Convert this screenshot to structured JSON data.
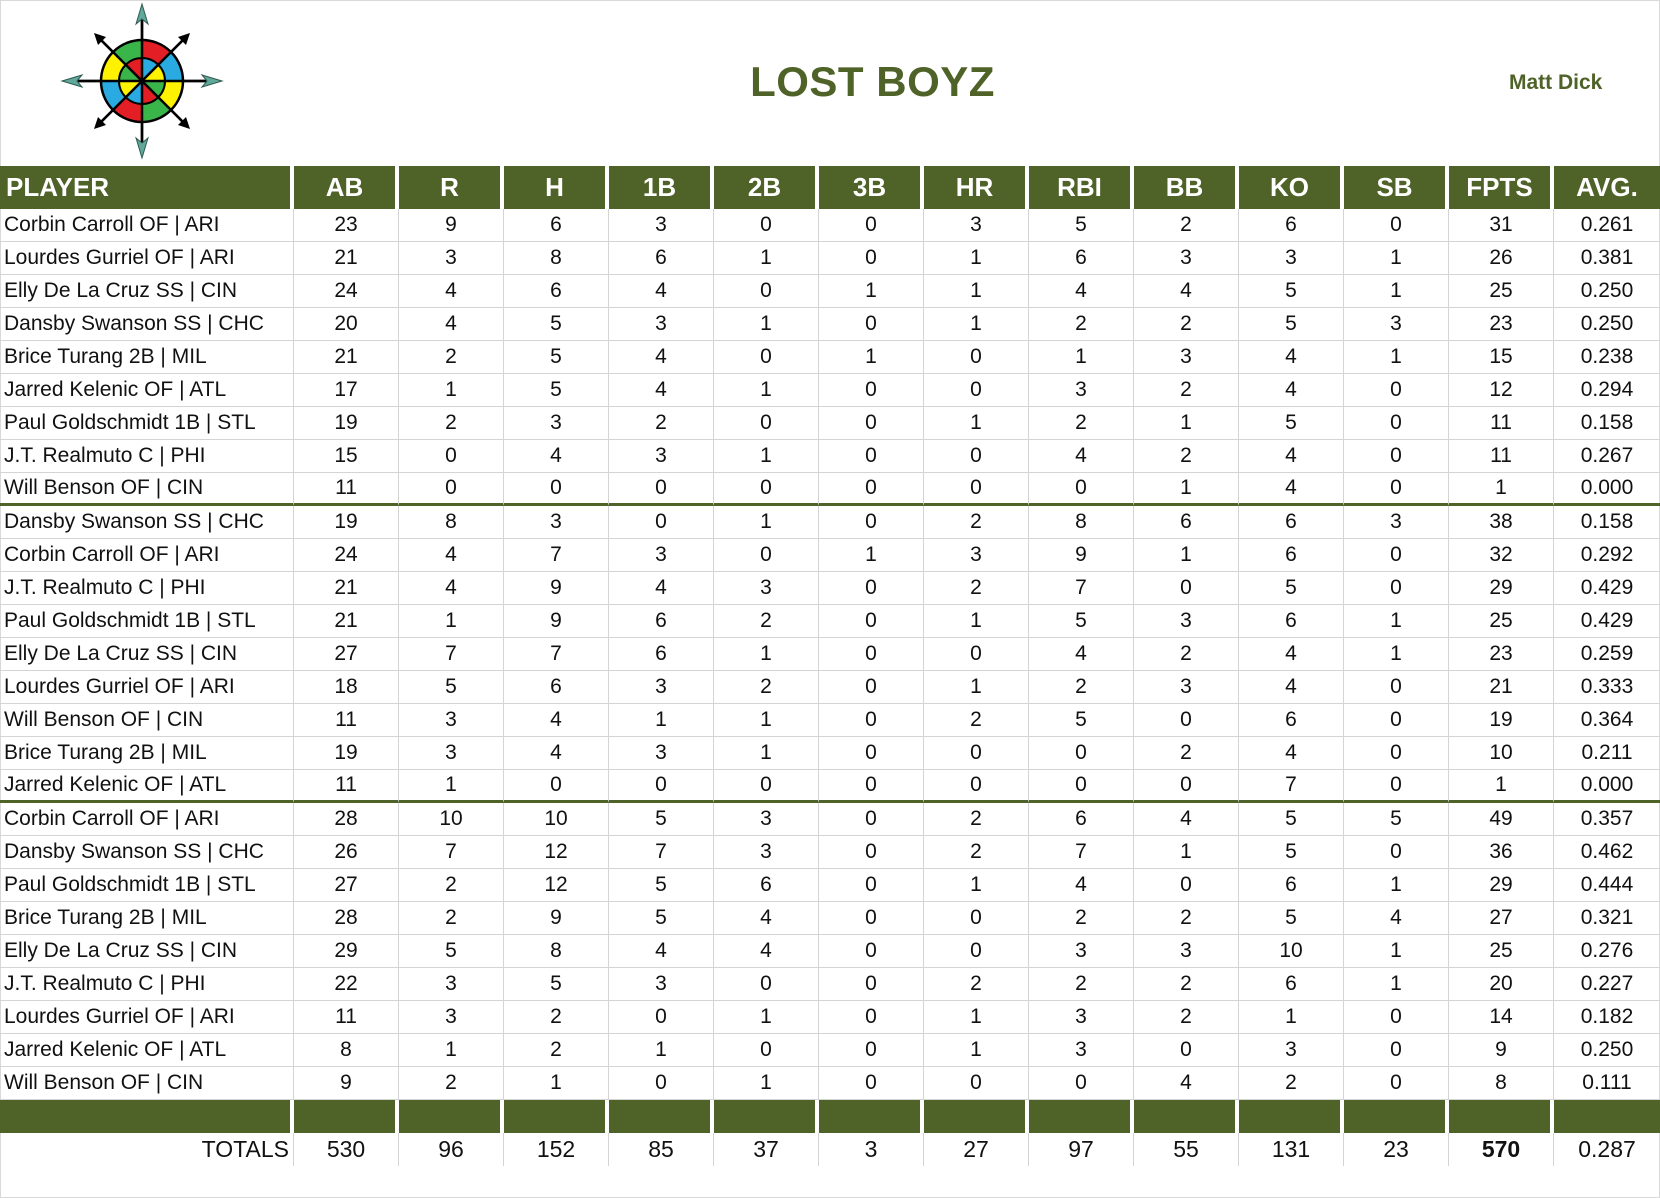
{
  "header": {
    "logo_icon": "compass-rose-icon",
    "team_name": "LOST BOYZ",
    "owner": "Matt Dick"
  },
  "colors": {
    "accent_green": "#4f6228",
    "header_text": "#ffffff",
    "gridline": "#d4d4d4"
  },
  "table": {
    "columns": [
      "PLAYER",
      "AB",
      "R",
      "H",
      "1B",
      "2B",
      "3B",
      "HR",
      "RBI",
      "BB",
      "KO",
      "SB",
      "FPTS",
      "AVG."
    ],
    "blocks": [
      {
        "rows": [
          [
            "Corbin Carroll OF | ARI",
            "23",
            "9",
            "6",
            "3",
            "0",
            "0",
            "3",
            "5",
            "2",
            "6",
            "0",
            "31",
            "0.261"
          ],
          [
            "Lourdes Gurriel OF | ARI",
            "21",
            "3",
            "8",
            "6",
            "1",
            "0",
            "1",
            "6",
            "3",
            "3",
            "1",
            "26",
            "0.381"
          ],
          [
            "Elly De La Cruz SS | CIN",
            "24",
            "4",
            "6",
            "4",
            "0",
            "1",
            "1",
            "4",
            "4",
            "5",
            "1",
            "25",
            "0.250"
          ],
          [
            "Dansby Swanson SS | CHC",
            "20",
            "4",
            "5",
            "3",
            "1",
            "0",
            "1",
            "2",
            "2",
            "5",
            "3",
            "23",
            "0.250"
          ],
          [
            "Brice Turang 2B | MIL",
            "21",
            "2",
            "5",
            "4",
            "0",
            "1",
            "0",
            "1",
            "3",
            "4",
            "1",
            "15",
            "0.238"
          ],
          [
            "Jarred Kelenic OF | ATL",
            "17",
            "1",
            "5",
            "4",
            "1",
            "0",
            "0",
            "3",
            "2",
            "4",
            "0",
            "12",
            "0.294"
          ],
          [
            "Paul Goldschmidt 1B | STL",
            "19",
            "2",
            "3",
            "2",
            "0",
            "0",
            "1",
            "2",
            "1",
            "5",
            "0",
            "11",
            "0.158"
          ],
          [
            "J.T. Realmuto C | PHI",
            "15",
            "0",
            "4",
            "3",
            "1",
            "0",
            "0",
            "4",
            "2",
            "4",
            "0",
            "11",
            "0.267"
          ],
          [
            "Will Benson OF | CIN",
            "11",
            "0",
            "0",
            "0",
            "0",
            "0",
            "0",
            "0",
            "1",
            "4",
            "0",
            "1",
            "0.000"
          ]
        ]
      },
      {
        "rows": [
          [
            "Dansby Swanson SS | CHC",
            "19",
            "8",
            "3",
            "0",
            "1",
            "0",
            "2",
            "8",
            "6",
            "6",
            "3",
            "38",
            "0.158"
          ],
          [
            "Corbin Carroll OF | ARI",
            "24",
            "4",
            "7",
            "3",
            "0",
            "1",
            "3",
            "9",
            "1",
            "6",
            "0",
            "32",
            "0.292"
          ],
          [
            "J.T. Realmuto C | PHI",
            "21",
            "4",
            "9",
            "4",
            "3",
            "0",
            "2",
            "7",
            "0",
            "5",
            "0",
            "29",
            "0.429"
          ],
          [
            "Paul Goldschmidt 1B | STL",
            "21",
            "1",
            "9",
            "6",
            "2",
            "0",
            "1",
            "5",
            "3",
            "6",
            "1",
            "25",
            "0.429"
          ],
          [
            "Elly De La Cruz SS | CIN",
            "27",
            "7",
            "7",
            "6",
            "1",
            "0",
            "0",
            "4",
            "2",
            "4",
            "1",
            "23",
            "0.259"
          ],
          [
            "Lourdes Gurriel OF | ARI",
            "18",
            "5",
            "6",
            "3",
            "2",
            "0",
            "1",
            "2",
            "3",
            "4",
            "0",
            "21",
            "0.333"
          ],
          [
            "Will Benson OF | CIN",
            "11",
            "3",
            "4",
            "1",
            "1",
            "0",
            "2",
            "5",
            "0",
            "6",
            "0",
            "19",
            "0.364"
          ],
          [
            "Brice Turang 2B | MIL",
            "19",
            "3",
            "4",
            "3",
            "1",
            "0",
            "0",
            "0",
            "2",
            "4",
            "0",
            "10",
            "0.211"
          ],
          [
            "Jarred Kelenic OF | ATL",
            "11",
            "1",
            "0",
            "0",
            "0",
            "0",
            "0",
            "0",
            "0",
            "7",
            "0",
            "1",
            "0.000"
          ]
        ]
      },
      {
        "rows": [
          [
            "Corbin Carroll OF | ARI",
            "28",
            "10",
            "10",
            "5",
            "3",
            "0",
            "2",
            "6",
            "4",
            "5",
            "5",
            "49",
            "0.357"
          ],
          [
            "Dansby Swanson SS | CHC",
            "26",
            "7",
            "12",
            "7",
            "3",
            "0",
            "2",
            "7",
            "1",
            "5",
            "0",
            "36",
            "0.462"
          ],
          [
            "Paul Goldschmidt 1B | STL",
            "27",
            "2",
            "12",
            "5",
            "6",
            "0",
            "1",
            "4",
            "0",
            "6",
            "1",
            "29",
            "0.444"
          ],
          [
            "Brice Turang 2B | MIL",
            "28",
            "2",
            "9",
            "5",
            "4",
            "0",
            "0",
            "2",
            "2",
            "5",
            "4",
            "27",
            "0.321"
          ],
          [
            "Elly De La Cruz SS | CIN",
            "29",
            "5",
            "8",
            "4",
            "4",
            "0",
            "0",
            "3",
            "3",
            "10",
            "1",
            "25",
            "0.276"
          ],
          [
            "J.T. Realmuto C | PHI",
            "22",
            "3",
            "5",
            "3",
            "0",
            "0",
            "2",
            "2",
            "2",
            "6",
            "1",
            "20",
            "0.227"
          ],
          [
            "Lourdes Gurriel OF | ARI",
            "11",
            "3",
            "2",
            "0",
            "1",
            "0",
            "1",
            "3",
            "2",
            "1",
            "0",
            "14",
            "0.182"
          ],
          [
            "Jarred Kelenic OF | ATL",
            "8",
            "1",
            "2",
            "1",
            "0",
            "0",
            "1",
            "3",
            "0",
            "3",
            "0",
            "9",
            "0.250"
          ],
          [
            "Will Benson OF | CIN",
            "9",
            "2",
            "1",
            "0",
            "1",
            "0",
            "0",
            "0",
            "4",
            "2",
            "0",
            "8",
            "0.111"
          ]
        ]
      }
    ],
    "totals": {
      "label": "TOTALS",
      "values": [
        "530",
        "96",
        "152",
        "85",
        "37",
        "3",
        "27",
        "97",
        "55",
        "131",
        "23",
        "570",
        "0.287"
      ]
    }
  }
}
